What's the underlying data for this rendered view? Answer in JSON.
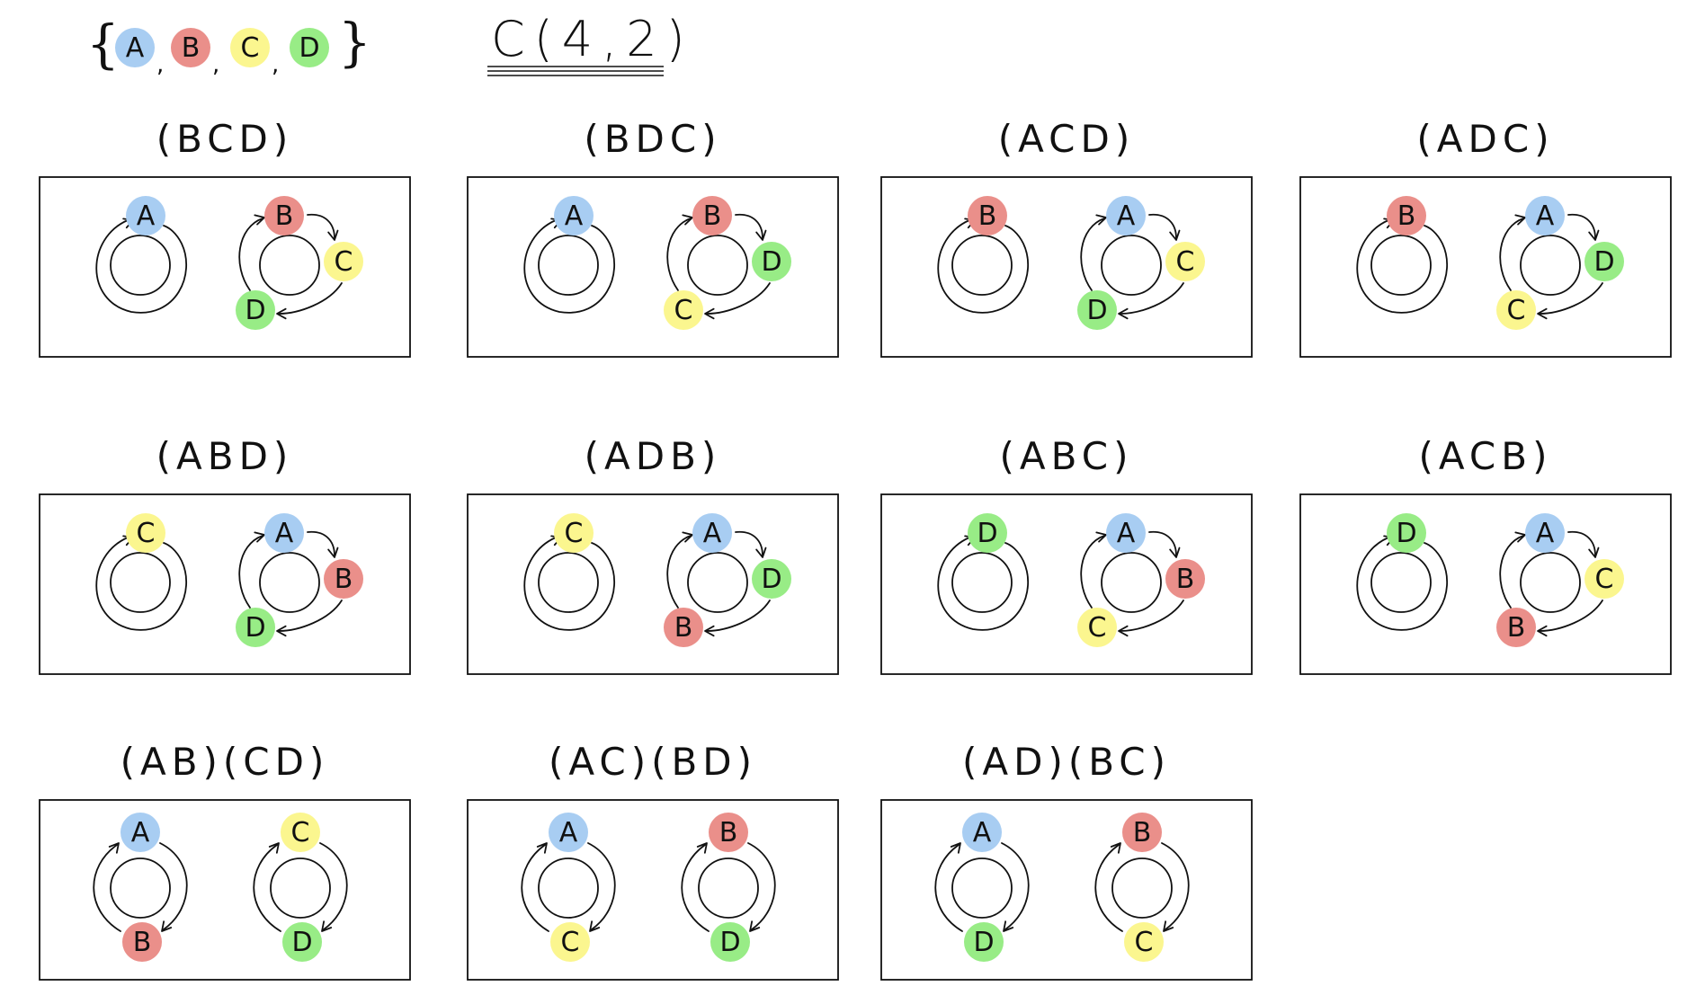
{
  "header": {
    "set_open": "{",
    "set_close": "}",
    "set_elements": [
      "A",
      "B",
      "C",
      "D"
    ],
    "title": "C(4,2)"
  },
  "colors": {
    "A": "#a8cdf2",
    "B": "#ea8f8a",
    "C": "#fbf68f",
    "D": "#98ec86",
    "stroke": "#111111"
  },
  "panels": [
    {
      "label": "(BCD)",
      "left_single": "A",
      "right": [
        "B",
        "C",
        "D"
      ]
    },
    {
      "label": "(BDC)",
      "left_single": "A",
      "right": [
        "B",
        "D",
        "C"
      ]
    },
    {
      "label": "(ACD)",
      "left_single": "B",
      "right": [
        "A",
        "C",
        "D"
      ]
    },
    {
      "label": "(ADC)",
      "left_single": "B",
      "right": [
        "A",
        "D",
        "C"
      ]
    },
    {
      "label": "(ABD)",
      "left_single": "C",
      "right": [
        "A",
        "B",
        "D"
      ]
    },
    {
      "label": "(ADB)",
      "left_single": "C",
      "right": [
        "A",
        "D",
        "B"
      ]
    },
    {
      "label": "(ABC)",
      "left_single": "D",
      "right": [
        "A",
        "B",
        "C"
      ]
    },
    {
      "label": "(ACB)",
      "left_single": "D",
      "right": [
        "A",
        "C",
        "B"
      ]
    },
    {
      "label": "(AB)(CD)",
      "pairs": [
        [
          "A",
          "B"
        ],
        [
          "C",
          "D"
        ]
      ]
    },
    {
      "label": "(AC)(BD)",
      "pairs": [
        [
          "A",
          "C"
        ],
        [
          "B",
          "D"
        ]
      ]
    },
    {
      "label": "(AD)(BC)",
      "pairs": [
        [
          "A",
          "D"
        ],
        [
          "B",
          "C"
        ]
      ]
    }
  ]
}
